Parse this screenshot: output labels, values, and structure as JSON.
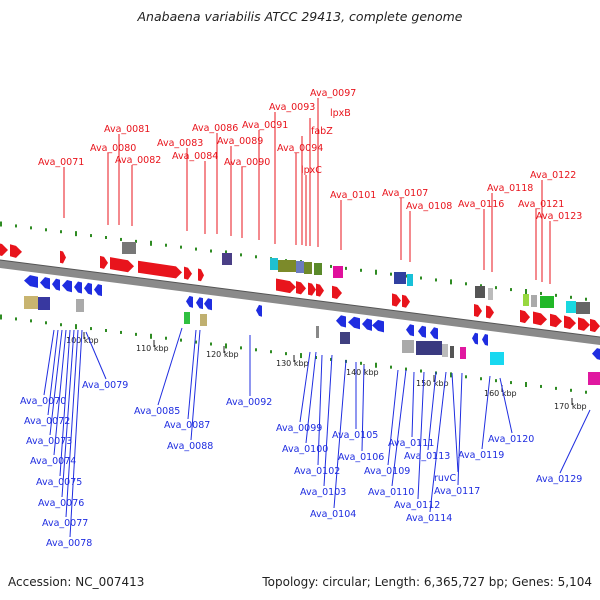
{
  "title": "Anabaena variabilis ATCC 29413, complete genome",
  "footer": {
    "accession": "Accession: NC_007413",
    "summary": "Topology: circular; Length: 6,365,727 bp; Genes: 5,104"
  },
  "colors": {
    "forward": "#e8141c",
    "reverse": "#1f2de0",
    "backbone": "#8a8a8a",
    "tick_dots": "#2e8b22"
  },
  "scale_labels": [
    "100 kbp",
    "110 kbp",
    "120 kbp",
    "130 kbp",
    "140 kbp",
    "150 kbp",
    "160 kbp",
    "170 kbp"
  ],
  "top_labels": [
    "Ava_0071",
    "Ava_0080",
    "Ava_0081",
    "Ava_0082",
    "Ava_0083",
    "Ava_0084",
    "Ava_0086",
    "Ava_0089",
    "Ava_0090",
    "Ava_0091",
    "Ava_0093",
    "fabZ",
    "lpxB",
    "Ava_0097",
    "Ava_0094",
    "lpxC",
    "Ava_0101",
    "Ava_0107",
    "Ava_0108",
    "Ava_0116",
    "Ava_0118",
    "Ava_0121",
    "Ava_0122",
    "Ava_0123"
  ],
  "bottom_labels": [
    "Ava_0070",
    "Ava_0072",
    "Ava_0073",
    "Ava_0074",
    "Ava_0075",
    "Ava_0076",
    "Ava_0077",
    "Ava_0078",
    "Ava_0079",
    "Ava_0085",
    "Ava_0087",
    "Ava_0088",
    "Ava_0092",
    "Ava_0099",
    "Ava_0100",
    "Ava_0102",
    "Ava_0103",
    "Ava_0104",
    "Ava_0105",
    "Ava_0106",
    "Ava_0109",
    "Ava_0110",
    "Ava_0111",
    "Ava_0112",
    "Ava_0113",
    "Ava_0114",
    "ruvC",
    "Ava_0117",
    "Ava_0119",
    "Ava_0120",
    "Ava_0129"
  ]
}
